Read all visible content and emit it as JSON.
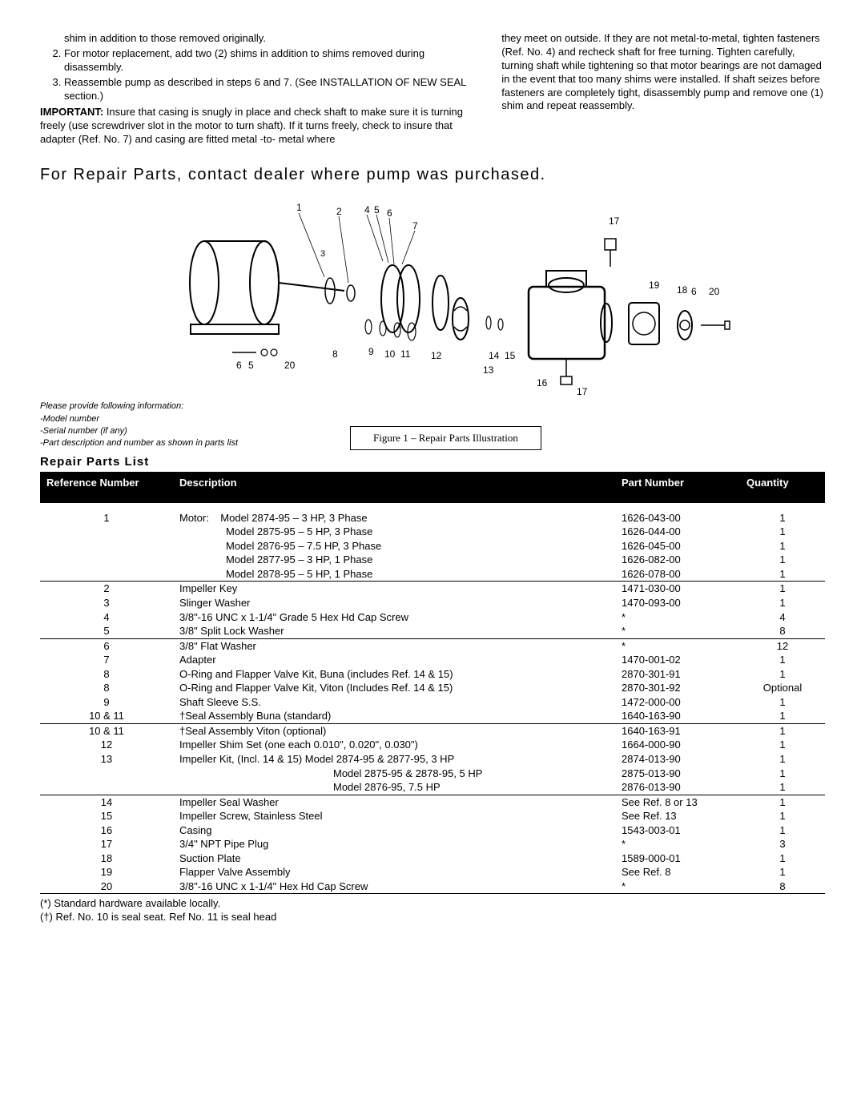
{
  "instructions": {
    "fragment": "shim in addition to those removed originally.",
    "steps": [
      "For motor replacement, add two (2) shims in addition to shims removed during disassembly.",
      "Reassemble pump as described in steps 6 and 7. (See INSTALLATION OF NEW SEAL section.)"
    ],
    "important_label": "IMPORTANT:",
    "important_text": " Insure that casing is snugly in place and check shaft to make sure it is turning freely (use screwdriver slot in the motor to turn shaft). If it turns freely, check to insure that adapter (Ref. No. 7) and casing are fitted metal -to- metal where",
    "right_col": "they meet on outside. If they are not metal-to-metal, tighten fasteners (Ref. No. 4) and recheck shaft for free turning. Tighten carefully, turning shaft while tightening so that motor bearings are not damaged in the event that too many shims were installed. If shaft seizes before fasteners are completely tight, disassembly pump and remove one (1) shim and repeat reassembly."
  },
  "headings": {
    "repair_contact": "For Repair Parts, contact dealer where pump was purchased.",
    "list": "Repair Parts List"
  },
  "info_request": {
    "intro": "Please provide following information:",
    "lines": [
      "-Model number",
      "-Serial number (if any)",
      "-Part description and number as shown in parts list"
    ]
  },
  "figure_caption": "Figure 1 – Repair Parts Illustration",
  "diagram_labels": [
    "1",
    "2",
    "3",
    "4",
    "5",
    "6",
    "7",
    "8",
    "9",
    "10",
    "11",
    "12",
    "13",
    "14",
    "15",
    "16",
    "17",
    "18",
    "19",
    "20",
    "5",
    "6",
    "17",
    "20",
    "6"
  ],
  "table": {
    "headers": {
      "ref": "Reference Number",
      "desc": "Description",
      "part": "Part Number",
      "qty": "Quantity"
    },
    "groups": [
      [
        {
          "ref": "1",
          "desc": "Motor:    Model 2874-95 – 3 HP, 3 Phase",
          "part": "1626-043-00",
          "qty": "1",
          "motor": true
        },
        {
          "ref": "",
          "desc": "Model 2875-95 – 5 HP, 3 Phase",
          "part": "1626-044-00",
          "qty": "1",
          "indent": true
        },
        {
          "ref": "",
          "desc": "Model 2876-95 – 7.5 HP, 3 Phase",
          "part": "1626-045-00",
          "qty": "1",
          "indent": true
        },
        {
          "ref": "",
          "desc": "Model 2877-95 – 3 HP, 1 Phase",
          "part": "1626-082-00",
          "qty": "1",
          "indent": true
        },
        {
          "ref": "",
          "desc": "Model 2878-95 – 5 HP, 1 Phase",
          "part": "1626-078-00",
          "qty": "1",
          "indent": true
        }
      ],
      [
        {
          "ref": "2",
          "desc": "Impeller Key",
          "part": "1471-030-00",
          "qty": "1"
        },
        {
          "ref": "3",
          "desc": "Slinger Washer",
          "part": "1470-093-00",
          "qty": "1"
        },
        {
          "ref": "4",
          "desc": "3/8\"-16 UNC x 1-1/4\" Grade 5 Hex Hd Cap Screw",
          "part": "*",
          "qty": "4"
        },
        {
          "ref": "5",
          "desc": "3/8\" Split Lock Washer",
          "part": "*",
          "qty": "8"
        }
      ],
      [
        {
          "ref": "6",
          "desc": "3/8\" Flat Washer",
          "part": "*",
          "qty": "12"
        },
        {
          "ref": "7",
          "desc": "Adapter",
          "part": "1470-001-02",
          "qty": "1"
        },
        {
          "ref": "8",
          "desc": "O-Ring and Flapper Valve Kit, Buna (includes Ref. 14 & 15)",
          "part": "2870-301-91",
          "qty": "1"
        },
        {
          "ref": "8",
          "desc": "O-Ring and Flapper Valve Kit, Viton (Includes Ref. 14 & 15)",
          "part": "2870-301-92",
          "qty": "Optional"
        },
        {
          "ref": "9",
          "desc": "Shaft Sleeve S.S.",
          "part": "1472-000-00",
          "qty": "1"
        },
        {
          "ref": "10 & 11",
          "desc": "†Seal Assembly Buna (standard)",
          "part": "1640-163-90",
          "qty": "1"
        }
      ],
      [
        {
          "ref": "10 & 11",
          "desc": "†Seal Assembly Viton (optional)",
          "part": "1640-163-91",
          "qty": "1"
        },
        {
          "ref": "12",
          "desc": "Impeller Shim Set (one each 0.010\", 0.020\", 0.030\")",
          "part": "1664-000-90",
          "qty": "1"
        },
        {
          "ref": "13",
          "desc": "Impeller Kit, (Incl. 14 & 15) Model 2874-95 & 2877-95, 3 HP",
          "part": "2874-013-90",
          "qty": "1"
        },
        {
          "ref": "",
          "desc": "Model 2875-95 & 2878-95, 5 HP",
          "part": "2875-013-90",
          "qty": "1",
          "indent2": true
        },
        {
          "ref": "",
          "desc": "Model 2876-95, 7.5 HP",
          "part": "2876-013-90",
          "qty": "1",
          "indent2": true
        }
      ],
      [
        {
          "ref": "14",
          "desc": "Impeller Seal Washer",
          "part": "See Ref. 8 or 13",
          "qty": "1"
        },
        {
          "ref": "15",
          "desc": "Impeller Screw, Stainless Steel",
          "part": "See Ref. 13",
          "qty": "1"
        },
        {
          "ref": "16",
          "desc": "Casing",
          "part": "1543-003-01",
          "qty": "1"
        },
        {
          "ref": "17",
          "desc": "3/4\" NPT Pipe Plug",
          "part": "*",
          "qty": "3"
        },
        {
          "ref": "18",
          "desc": "Suction Plate",
          "part": "1589-000-01",
          "qty": "1"
        },
        {
          "ref": "19",
          "desc": "Flapper Valve Assembly",
          "part": "See Ref. 8",
          "qty": "1"
        },
        {
          "ref": "20",
          "desc": "3/8\"-16 UNC x 1-1/4\" Hex Hd Cap Screw",
          "part": "*",
          "qty": "8"
        }
      ]
    ]
  },
  "footnotes": [
    "(*) Standard hardware available locally.",
    "(†) Ref. No. 10 is seal seat. Ref No. 11 is seal head"
  ]
}
